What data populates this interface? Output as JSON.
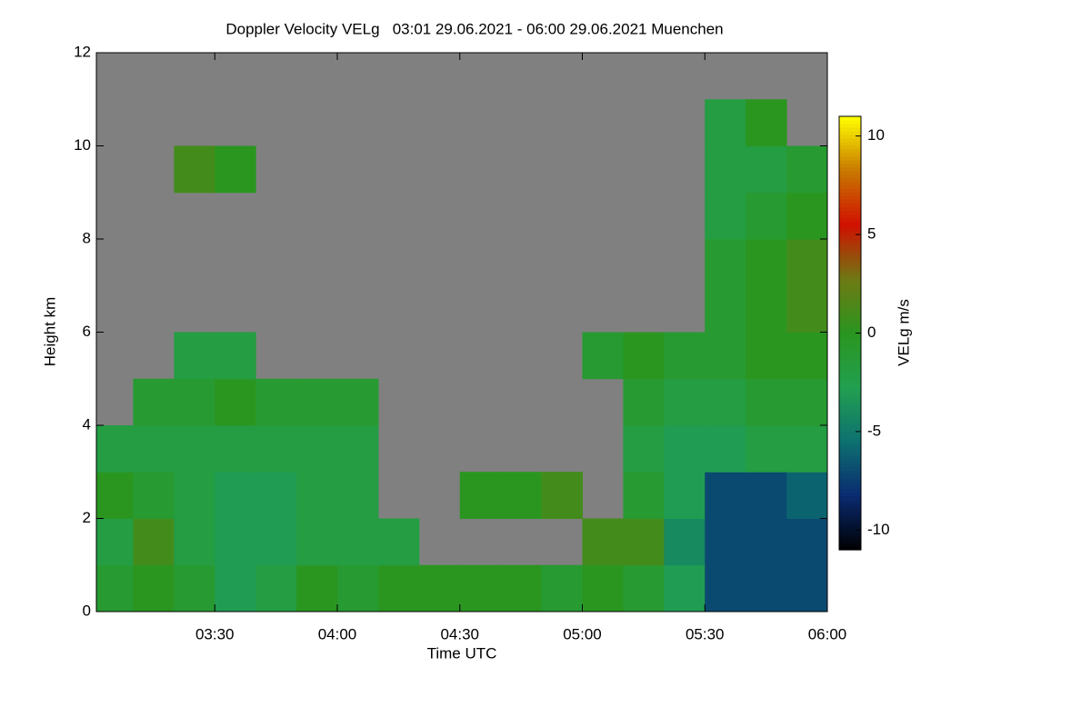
{
  "chart_data": {
    "type": "heatmap",
    "title": "Doppler Velocity VELg   03:01 29.06.2021 - 06:00 29.06.2021 Muenchen",
    "xlabel": "Time UTC",
    "ylabel": "Height km",
    "colorbar_label": "VELg m/s",
    "xlim": [
      "03:01",
      "06:00"
    ],
    "xticks": [
      "03:30",
      "04:00",
      "04:30",
      "05:00",
      "05:30",
      "06:00"
    ],
    "ylim": [
      0,
      12
    ],
    "yticks": [
      0,
      2,
      4,
      6,
      8,
      10,
      12
    ],
    "zlim": [
      -11,
      11
    ],
    "zticks": [
      -10,
      -5,
      0,
      5,
      10
    ],
    "background": "#808080",
    "colormap": [
      "#000000",
      "#0a2a70",
      "#0d7070",
      "#22a050",
      "#2a9620",
      "#6e7a14",
      "#d01000",
      "#c87800",
      "#ffff00"
    ],
    "x_edges": [
      "03:01",
      "03:10",
      "03:20",
      "03:30",
      "03:40",
      "03:50",
      "04:00",
      "04:10",
      "04:20",
      "04:30",
      "04:40",
      "04:50",
      "05:00",
      "05:10",
      "05:20",
      "05:30",
      "05:40",
      "05:50",
      "06:00"
    ],
    "y_edges": [
      0,
      1,
      2,
      3,
      4,
      5,
      6,
      7,
      8,
      9,
      10,
      11,
      12
    ],
    "z": [
      [
        -1,
        0,
        -1,
        -3,
        -2,
        0,
        -1,
        0,
        0,
        0,
        0,
        -1,
        0,
        -1,
        -3,
        -7,
        -7,
        -7
      ],
      [
        -2,
        1,
        -2,
        -3,
        -3,
        -2,
        -2,
        -2,
        null,
        null,
        null,
        null,
        1,
        1,
        -4,
        -7,
        -7,
        -7
      ],
      [
        0,
        -1,
        -2,
        -3,
        -3,
        -2,
        -2,
        null,
        null,
        0,
        0,
        1,
        null,
        -1,
        -3,
        -7,
        -7,
        -6
      ],
      [
        -2,
        -2,
        -2,
        -2,
        -2,
        -2,
        -2,
        null,
        null,
        null,
        null,
        null,
        null,
        -2,
        -3,
        -3,
        -2,
        -2
      ],
      [
        null,
        -1,
        -1,
        0,
        -1,
        -1,
        -1,
        null,
        null,
        null,
        null,
        null,
        null,
        -1,
        -2,
        -2,
        -1,
        -1
      ],
      [
        null,
        null,
        -2,
        -2,
        null,
        null,
        null,
        null,
        null,
        null,
        null,
        null,
        -1,
        0,
        -1,
        -1,
        0,
        0
      ],
      [
        null,
        null,
        null,
        null,
        null,
        null,
        null,
        null,
        null,
        null,
        null,
        null,
        null,
        null,
        null,
        -1,
        0,
        1
      ],
      [
        null,
        null,
        null,
        null,
        null,
        null,
        null,
        null,
        null,
        null,
        null,
        null,
        null,
        null,
        null,
        -1,
        0,
        1
      ],
      [
        null,
        null,
        null,
        null,
        null,
        null,
        null,
        null,
        null,
        null,
        null,
        null,
        null,
        null,
        null,
        -2,
        -1,
        0
      ],
      [
        null,
        null,
        1,
        0,
        null,
        null,
        null,
        null,
        null,
        null,
        null,
        null,
        null,
        null,
        null,
        -2,
        -2,
        -1
      ],
      [
        null,
        null,
        null,
        null,
        null,
        null,
        null,
        null,
        null,
        null,
        null,
        null,
        null,
        null,
        null,
        -2,
        0,
        null
      ],
      [
        null,
        null,
        null,
        null,
        null,
        null,
        null,
        null,
        null,
        null,
        null,
        null,
        null,
        null,
        null,
        null,
        null,
        null
      ]
    ]
  }
}
